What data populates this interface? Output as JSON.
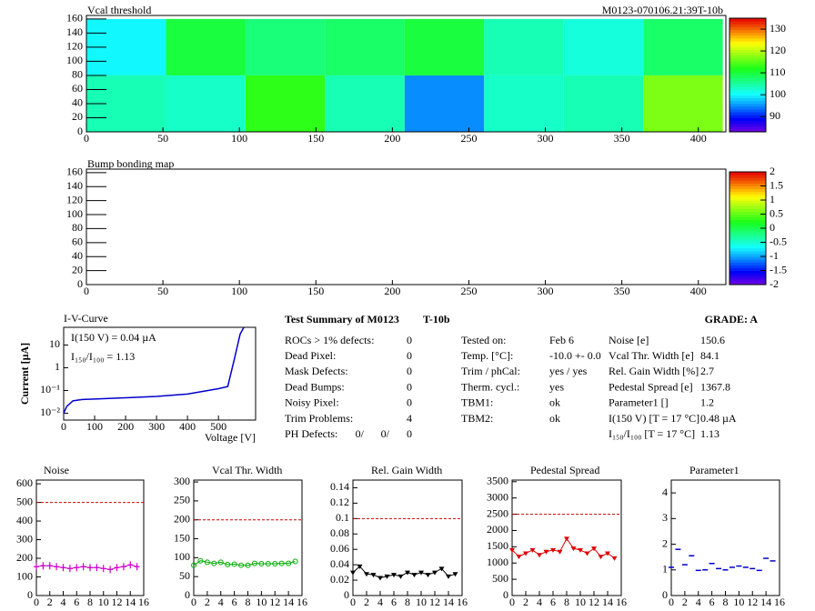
{
  "chart_data": [
    {
      "type": "heatmap",
      "title": "Vcal threshold",
      "subtitle": "M0123-070106.21:39T-10b",
      "xbins": [
        0,
        52,
        104,
        156,
        208,
        260,
        312,
        364,
        416
      ],
      "ybins": [
        0,
        80,
        160
      ],
      "values": [
        [
          104,
          103,
          113,
          104,
          95,
          103,
          104,
          117
        ],
        [
          100,
          110,
          107,
          108,
          110,
          104,
          102,
          108
        ]
      ],
      "xlim": [
        0,
        418
      ],
      "ylim": [
        0,
        165
      ],
      "xticks": [
        0,
        50,
        100,
        150,
        200,
        250,
        300,
        350,
        400
      ],
      "yticks": [
        0,
        20,
        40,
        60,
        80,
        100,
        120,
        140,
        160
      ],
      "zlim": [
        83,
        135
      ],
      "zticks": [
        90,
        100,
        110,
        120,
        130
      ]
    },
    {
      "type": "heatmap",
      "title": "Bump bonding map",
      "xlim": [
        0,
        418
      ],
      "ylim": [
        0,
        165
      ],
      "xticks": [
        0,
        50,
        100,
        150,
        200,
        250,
        300,
        350,
        400
      ],
      "yticks": [
        0,
        20,
        40,
        60,
        80,
        100,
        120,
        140,
        160
      ],
      "zlim": [
        -2,
        2
      ],
      "zticks": [
        -2,
        -1.5,
        -1,
        -0.5,
        0,
        0.5,
        1,
        1.5,
        2
      ]
    },
    {
      "type": "line",
      "title": "I-V-Curve",
      "xlabel": "Voltage [V]",
      "ylabel": "Current [µA]",
      "color": "#0000cc",
      "log_y": true,
      "x": [
        0,
        10,
        30,
        60,
        100,
        200,
        300,
        400,
        500,
        530,
        550,
        570,
        582
      ],
      "values": [
        0.01,
        0.02,
        0.035,
        0.04,
        0.042,
        0.048,
        0.055,
        0.07,
        0.12,
        0.15,
        2,
        30,
        60
      ],
      "xlim": [
        0,
        620
      ],
      "ylim": [
        0.005,
        60
      ],
      "xticks": [
        0,
        100,
        200,
        300,
        400,
        500
      ],
      "yticks": [
        {
          "value": 0.01,
          "label": "10⁻²"
        },
        {
          "value": 0.1,
          "label": "10⁻¹"
        },
        1,
        10
      ],
      "annotations": [
        "I(150 V) = 0.04 µA",
        "I₁₅₀/I₁₀₀ =  1.13"
      ]
    },
    {
      "type": "scatter",
      "title": "Noise",
      "color": "#cc00cc",
      "marker": "cross",
      "connect": true,
      "reference": 500,
      "x": [
        0,
        1,
        2,
        3,
        4,
        5,
        6,
        7,
        8,
        9,
        10,
        11,
        12,
        13,
        14,
        15
      ],
      "values": [
        155,
        160,
        160,
        155,
        150,
        145,
        150,
        155,
        150,
        150,
        145,
        140,
        150,
        155,
        165,
        155
      ],
      "xlim": [
        0,
        16
      ],
      "ylim": [
        0,
        620
      ],
      "xticks": [
        0,
        2,
        4,
        6,
        8,
        10,
        12,
        14,
        16
      ],
      "yticks": [
        0,
        100,
        200,
        300,
        400,
        500,
        600
      ]
    },
    {
      "type": "scatter",
      "title": "Vcal Thr. Width",
      "color": "#00aa00",
      "marker": "circle",
      "connect": true,
      "reference": 200,
      "x": [
        0,
        1,
        2,
        3,
        4,
        5,
        6,
        7,
        8,
        9,
        10,
        11,
        12,
        13,
        14,
        15
      ],
      "values": [
        80,
        92,
        88,
        85,
        88,
        82,
        83,
        80,
        80,
        85,
        84,
        84,
        84,
        85,
        85,
        90
      ],
      "xlim": [
        0,
        16
      ],
      "ylim": [
        0,
        305
      ],
      "xticks": [
        0,
        2,
        4,
        6,
        8,
        10,
        12,
        14,
        16
      ],
      "yticks": [
        0,
        50,
        100,
        150,
        200,
        250,
        300
      ]
    },
    {
      "type": "scatter",
      "title": "Rel. Gain Width",
      "color": "#000000",
      "marker": "triangle",
      "connect": true,
      "reference": 0.1,
      "x": [
        0,
        1,
        2,
        3,
        4,
        5,
        6,
        7,
        8,
        9,
        10,
        11,
        12,
        13,
        14,
        15
      ],
      "values": [
        0.03,
        0.038,
        0.028,
        0.027,
        0.023,
        0.025,
        0.027,
        0.025,
        0.03,
        0.027,
        0.03,
        0.027,
        0.03,
        0.035,
        0.025,
        0.028
      ],
      "xlim": [
        0,
        16
      ],
      "ylim": [
        0,
        0.15
      ],
      "xticks": [
        0,
        2,
        4,
        6,
        8,
        10,
        12,
        14,
        16
      ],
      "yticks": [
        0,
        0.02,
        0.04,
        0.06,
        0.08,
        0.1,
        0.12,
        0.14
      ]
    },
    {
      "type": "scatter",
      "title": "Pedestal Spread",
      "color": "#dd0000",
      "marker": "triangle",
      "connect": true,
      "reference": 2500,
      "x": [
        0,
        1,
        2,
        3,
        4,
        5,
        6,
        7,
        8,
        9,
        10,
        11,
        12,
        13,
        14,
        15
      ],
      "values": [
        1400,
        1200,
        1300,
        1400,
        1250,
        1350,
        1400,
        1350,
        1750,
        1450,
        1400,
        1300,
        1450,
        1200,
        1300,
        1150
      ],
      "xlim": [
        0,
        16
      ],
      "ylim": [
        0,
        3550
      ],
      "xticks": [
        0,
        2,
        4,
        6,
        8,
        10,
        12,
        14,
        16
      ],
      "yticks": [
        0,
        500,
        1000,
        1500,
        2000,
        2500,
        3000,
        3500
      ]
    },
    {
      "type": "scatter",
      "title": "Parameter1",
      "color": "#0000cc",
      "marker": "dash",
      "connect": false,
      "x": [
        0,
        1,
        2,
        3,
        4,
        5,
        6,
        7,
        8,
        9,
        10,
        11,
        12,
        13,
        14,
        15
      ],
      "values": [
        1.1,
        1.8,
        1.2,
        1.55,
        0.98,
        1.0,
        1.25,
        1.05,
        1.0,
        1.1,
        1.15,
        1.1,
        1.05,
        0.98,
        1.45,
        1.35
      ],
      "xlim": [
        0,
        16
      ],
      "ylim": [
        0,
        4.5
      ],
      "xticks": [
        0,
        2,
        4,
        6,
        8,
        10,
        12,
        14,
        16
      ],
      "yticks": [
        0,
        1,
        2,
        3,
        4
      ]
    }
  ],
  "summary": {
    "title": "Test Summary of M0123",
    "subtitle": "T-10b",
    "grade": "GRADE:  A",
    "left": [
      [
        "ROCs > 1% defects:",
        0
      ],
      [
        "Dead Pixel:",
        0
      ],
      [
        "Mask Defects:",
        0
      ],
      [
        "Dead Bumps:",
        0
      ],
      [
        "Noisy Pixel:",
        0
      ],
      [
        "Trim Problems:",
        4
      ]
    ],
    "ph_label": "PH Defects:",
    "ph_values": [
      "0/",
      "0/",
      "0"
    ],
    "middle": [
      [
        "Tested on:",
        "Feb 6"
      ],
      [
        "Temp. [°C]:",
        "-10.0 +- 0.0"
      ],
      [
        "Trim / phCal:",
        "yes / yes"
      ],
      [
        "Therm. cycl.:",
        "yes"
      ],
      [
        "TBM1:",
        "ok"
      ],
      [
        "TBM2:",
        "ok"
      ]
    ],
    "right": [
      [
        "Noise [e]",
        150.6
      ],
      [
        "Vcal Thr. Width [e]",
        84.1
      ],
      [
        "Rel. Gain Width [%]",
        2.7
      ],
      [
        "Pedestal Spread [e]",
        1367.8
      ],
      [
        "Parameter1 []",
        1.2
      ],
      [
        "I(150 V) [T = 17 °C]",
        "0.48 µA"
      ],
      [
        "I₁₅₀/I₁₀₀  [T = 17 °C]",
        1.13
      ]
    ]
  }
}
